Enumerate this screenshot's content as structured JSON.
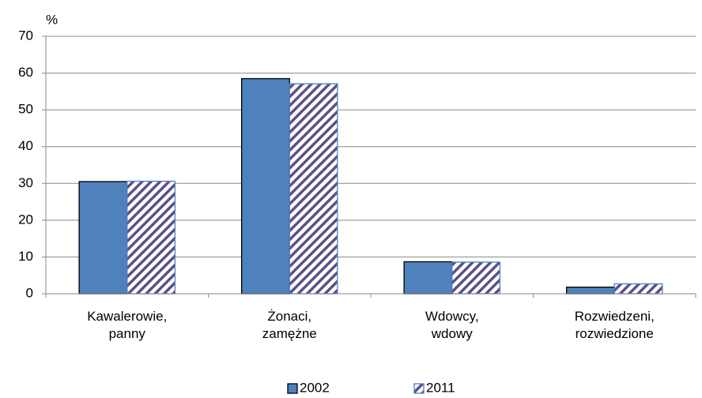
{
  "chart_data": {
    "type": "bar",
    "y_unit": "%",
    "categories": [
      [
        "Kawalerowie,",
        "panny"
      ],
      [
        "Żonaci,",
        "zamężne"
      ],
      [
        "Wdowcy,",
        "wdowy"
      ],
      [
        "Rozwiedzeni,",
        "rozwiedzione"
      ]
    ],
    "series": [
      {
        "name": "2002",
        "color": "#4f81bd",
        "values": [
          30.5,
          58.5,
          8.7,
          1.8
        ]
      },
      {
        "name": "2011",
        "color": "#5b4f8a",
        "pattern": "hatch",
        "values": [
          30.6,
          57.1,
          8.6,
          2.7
        ]
      }
    ],
    "ylim": [
      0,
      70
    ],
    "yticks": [
      0,
      10,
      20,
      30,
      40,
      50,
      60,
      70
    ],
    "grid": true,
    "legend": "bottom"
  }
}
